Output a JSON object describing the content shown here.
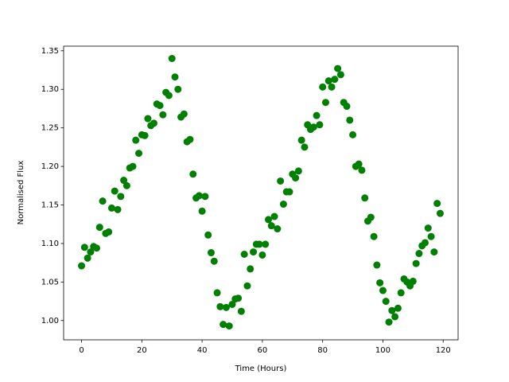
{
  "chart_data": {
    "type": "scatter",
    "xlabel": "Time (Hours)",
    "ylabel": "Normalised Flux",
    "color": "#008000",
    "x": [
      0,
      1,
      2,
      3,
      4,
      5,
      6,
      7,
      8,
      9,
      10,
      11,
      12,
      13,
      14,
      15,
      16,
      17,
      18,
      19,
      20,
      21,
      22,
      23,
      24,
      25,
      26,
      27,
      28,
      29,
      30,
      31,
      32,
      33,
      34,
      35,
      36,
      37,
      38,
      39,
      40,
      41,
      42,
      43,
      44,
      45,
      46,
      47,
      48,
      49,
      50,
      51,
      52,
      53,
      54,
      55,
      56,
      57,
      58,
      59,
      60,
      61,
      62,
      63,
      64,
      65,
      66,
      67,
      68,
      69,
      70,
      71,
      72,
      73,
      74,
      75,
      76,
      77,
      78,
      79,
      80,
      81,
      82,
      83,
      84,
      85,
      86,
      87,
      88,
      89,
      90,
      91,
      92,
      93,
      94,
      95,
      96,
      97,
      98,
      99,
      100,
      101,
      102,
      103,
      104,
      105,
      106,
      107,
      108,
      109,
      110,
      111,
      112,
      113,
      114,
      115,
      116,
      117,
      118,
      119
    ],
    "values": [
      1.071,
      1.095,
      1.081,
      1.089,
      1.096,
      1.094,
      1.121,
      1.155,
      1.113,
      1.115,
      1.146,
      1.168,
      1.144,
      1.161,
      1.182,
      1.175,
      1.198,
      1.2,
      1.234,
      1.217,
      1.241,
      1.24,
      1.262,
      1.253,
      1.256,
      1.281,
      1.279,
      1.267,
      1.296,
      1.292,
      1.34,
      1.316,
      1.3,
      1.264,
      1.268,
      1.232,
      1.235,
      1.19,
      1.159,
      1.162,
      1.142,
      1.161,
      1.111,
      1.088,
      1.077,
      1.036,
      1.018,
      0.995,
      1.017,
      0.993,
      1.021,
      1.028,
      1.029,
      1.012,
      1.086,
      1.045,
      1.067,
      1.089,
      1.099,
      1.099,
      1.085,
      1.099,
      1.131,
      1.123,
      1.135,
      1.119,
      1.181,
      1.151,
      1.167,
      1.167,
      1.19,
      1.185,
      1.194,
      1.234,
      1.225,
      1.254,
      1.248,
      1.251,
      1.266,
      1.254,
      1.303,
      1.283,
      1.311,
      1.303,
      1.313,
      1.327,
      1.319,
      1.283,
      1.278,
      1.26,
      1.241,
      1.2,
      1.203,
      1.195,
      1.159,
      1.129,
      1.134,
      1.109,
      1.072,
      1.049,
      1.039,
      1.025,
      0.998,
      1.013,
      1.005,
      1.016,
      1.036,
      1.054,
      1.05,
      1.045,
      1.051,
      1.074,
      1.087,
      1.097,
      1.101,
      1.12,
      1.109,
      1.089,
      1.152,
      1.139
    ],
    "xlim": [
      -5.95,
      124.95
    ],
    "xticks": [
      0,
      20,
      40,
      60,
      80,
      100,
      120
    ],
    "ylim": [
      0.975,
      1.356
    ],
    "yticks": [
      {
        "value": 1.0,
        "label": "1.00"
      },
      1.05,
      {
        "value": 1.1,
        "label": "1.10"
      },
      1.15,
      {
        "value": 1.2,
        "label": "1.20"
      },
      1.25,
      {
        "value": 1.3,
        "label": "1.30"
      },
      1.35
    ]
  }
}
